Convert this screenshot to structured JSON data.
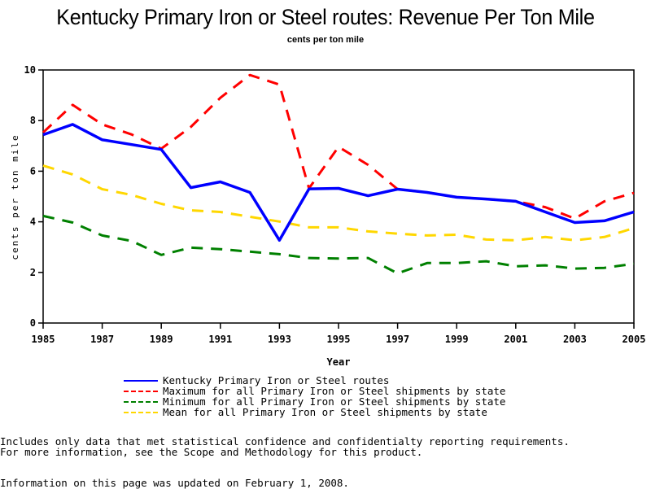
{
  "chart_data": {
    "type": "line",
    "title": "Kentucky Primary Iron or Steel routes: Revenue Per Ton Mile",
    "subtitle": "cents per ton mile",
    "xlabel": "Year",
    "ylabel": "cents per ton mile",
    "xlim": [
      1985,
      2005
    ],
    "ylim": [
      0,
      10
    ],
    "x_ticks": [
      "1985",
      "1987",
      "1989",
      "1991",
      "1993",
      "1995",
      "1997",
      "1999",
      "2001",
      "2003",
      "2005"
    ],
    "y_ticks": [
      "0",
      "2",
      "4",
      "6",
      "8",
      "10"
    ],
    "grid": false,
    "legend_position": "bottom",
    "x": [
      1985,
      1986,
      1987,
      1988,
      1989,
      1990,
      1991,
      1992,
      1993,
      1994,
      1995,
      1996,
      1997,
      1998,
      1999,
      2000,
      2001,
      2002,
      2003,
      2004,
      2005
    ],
    "series": [
      {
        "name": "Kentucky Primary Iron or Steel routes",
        "color": "#0000ff",
        "style": "solid",
        "values": [
          7.44,
          7.85,
          7.24,
          7.05,
          6.86,
          5.35,
          5.58,
          5.16,
          3.27,
          5.3,
          5.32,
          5.03,
          5.29,
          5.16,
          4.97,
          4.9,
          4.81,
          4.39,
          3.97,
          4.04,
          4.39
        ]
      },
      {
        "name": "Maximum for all Primary Iron or Steel shipments by state",
        "color": "#ff0000",
        "style": "dashed",
        "values": [
          7.53,
          8.62,
          7.85,
          7.45,
          6.89,
          7.75,
          8.9,
          9.8,
          9.42,
          5.32,
          6.96,
          6.25,
          5.29,
          5.16,
          4.97,
          4.9,
          4.81,
          4.58,
          4.13,
          4.81,
          5.14
        ]
      },
      {
        "name": "Minimum for all Primary Iron or Steel shipments by state",
        "color": "#008000",
        "style": "dashed",
        "values": [
          4.23,
          3.97,
          3.46,
          3.24,
          2.69,
          2.98,
          2.92,
          2.82,
          2.72,
          2.57,
          2.55,
          2.57,
          1.96,
          2.37,
          2.37,
          2.44,
          2.24,
          2.28,
          2.15,
          2.18,
          2.34
        ]
      },
      {
        "name": "Mean for all Primary Iron or Steel shipments by state",
        "color": "#ffd700",
        "style": "dashed",
        "values": [
          6.22,
          5.87,
          5.29,
          5.06,
          4.71,
          4.45,
          4.39,
          4.2,
          4.01,
          3.78,
          3.78,
          3.62,
          3.53,
          3.46,
          3.49,
          3.3,
          3.27,
          3.4,
          3.27,
          3.4,
          3.75
        ]
      }
    ]
  },
  "footer": {
    "note_line1": "Includes only data that met statistical confidence and confidentialty reporting requirements.",
    "note_line2": "For more information, see the Scope and Methodology for this product.",
    "updated": "Information on this page was updated on February 1, 2008."
  }
}
